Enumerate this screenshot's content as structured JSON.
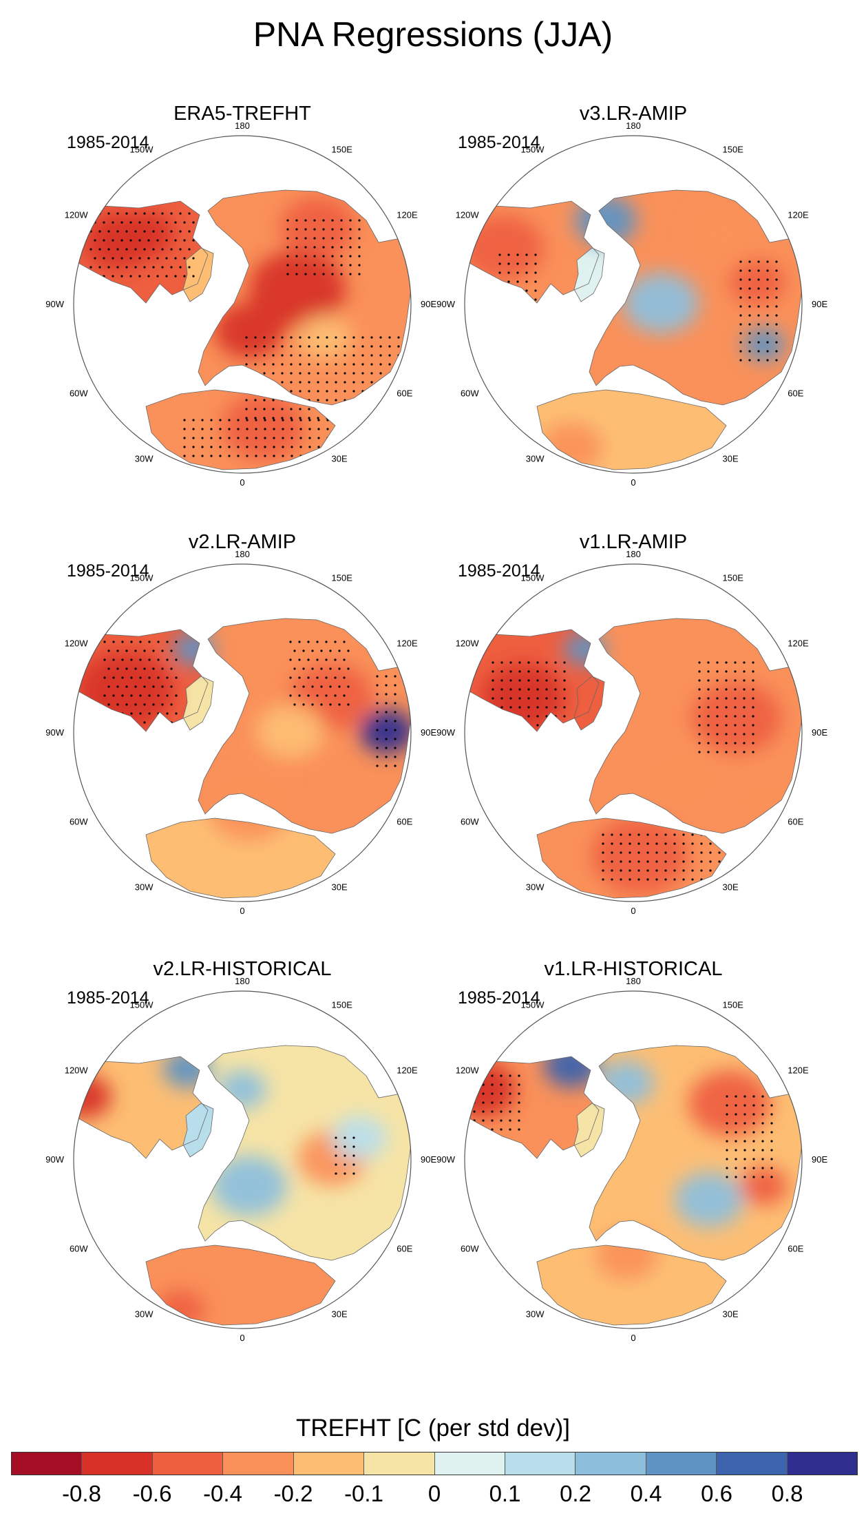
{
  "figure": {
    "title": "PNA Regressions (JJA)"
  },
  "panels": [
    {
      "title": "ERA5-TREFHT",
      "period": "1985-2014",
      "pattern": "era5"
    },
    {
      "title": "v3.LR-AMIP",
      "period": "1985-2014",
      "pattern": "v3amip"
    },
    {
      "title": "v2.LR-AMIP",
      "period": "1985-2014",
      "pattern": "v2amip"
    },
    {
      "title": "v1.LR-AMIP",
      "period": "1985-2014",
      "pattern": "v1amip"
    },
    {
      "title": "v2.LR-HISTORICAL",
      "period": "1985-2014",
      "pattern": "v2hist"
    },
    {
      "title": "v1.LR-HISTORICAL",
      "period": "1985-2014",
      "pattern": "v1hist"
    }
  ],
  "longitude_labels": [
    "180",
    "150E",
    "120E",
    "90E",
    "60E",
    "30E",
    "0",
    "30W",
    "60W",
    "90W",
    "120W",
    "150W"
  ],
  "colorbar": {
    "title": "TREFHT [C (per std dev)]",
    "levels": [
      "-0.8",
      "-0.6",
      "-0.4",
      "-0.2",
      "-0.1",
      "0",
      "0.1",
      "0.2",
      "0.4",
      "0.6",
      "0.8"
    ],
    "colors": [
      "#a50f26",
      "#d73128",
      "#ee5f40",
      "#fa915a",
      "#fdbe74",
      "#f6e4a6",
      "#e0f2ef",
      "#b8deec",
      "#8dbfdc",
      "#5f93c3",
      "#3c63ad",
      "#2e2e8f"
    ]
  }
}
